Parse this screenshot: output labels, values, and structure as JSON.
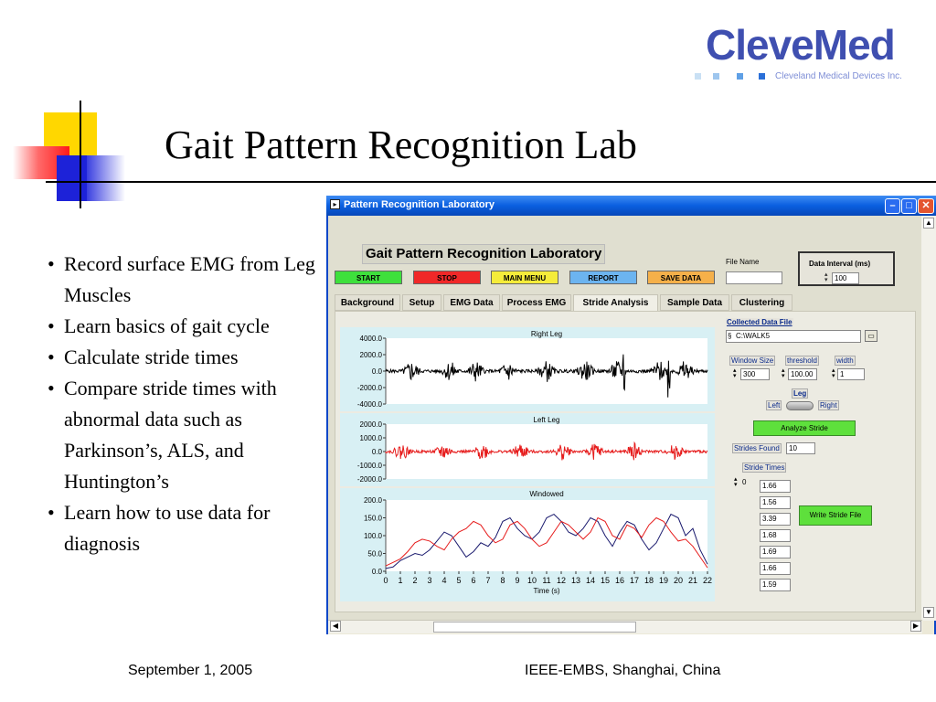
{
  "slide": {
    "title": "Gait Pattern Recognition Lab",
    "bullets": [
      "Record surface EMG from Leg Muscles",
      "Learn basics of gait cycle",
      "Calculate stride times",
      "Compare stride times with abnormal data such as Parkinson’s, ALS, and Huntington’s",
      "Learn how to use data for diagnosis"
    ],
    "footer_left": "September 1, 2005",
    "footer_right": "IEEE-EMBS, Shanghai, China"
  },
  "logo": {
    "name": "CleveMed",
    "tagline": "Cleveland Medical Devices Inc.",
    "color": "#3f4fb0"
  },
  "window": {
    "title": "Pattern Recognition Laboratory",
    "app_title": "Gait Pattern Recognition Laboratory",
    "buttons": [
      {
        "label": "START",
        "color": "#3ee03c"
      },
      {
        "label": "STOP",
        "color": "#f02828"
      },
      {
        "label": "MAIN MENU",
        "color": "#f5ec3a"
      },
      {
        "label": "REPORT",
        "color": "#6cb4f0"
      },
      {
        "label": "SAVE DATA",
        "color": "#f5b04a"
      }
    ],
    "file_name_label": "File Name",
    "file_name_value": "",
    "data_interval_label": "Data Interval (ms)",
    "data_interval_value": "100",
    "tabs": [
      "Background",
      "Setup",
      "EMG Data",
      "Process EMG",
      "Stride Analysis",
      "Sample Data",
      "Clustering"
    ],
    "active_tab": "Stride Analysis",
    "right_panel": {
      "collected_label": "Collected Data File",
      "collected_value": "C:\\WALK5",
      "window_size_label": "Window Size",
      "window_size_value": "300",
      "threshold_label": "threshold",
      "threshold_value": "100.00",
      "width_label": "width",
      "width_value": "1",
      "leg_label": "Leg",
      "leg_left": "Left",
      "leg_right": "Right",
      "analyze_label": "Analyze Stride",
      "strides_found_label": "Strides Found",
      "strides_found_value": "10",
      "stride_times_label": "Stride Times",
      "stride_index_value": "0",
      "stride_times": [
        "1.66",
        "1.56",
        "3.39",
        "1.68",
        "1.69",
        "1.66",
        "1.59"
      ],
      "write_label": "Write Stride File"
    }
  },
  "chart_data": [
    {
      "type": "line",
      "title": "Right Leg",
      "ylim": [
        -4000,
        4000
      ],
      "yticks": [
        "4000.0",
        "2000.0",
        "0.0",
        "-2000.0",
        "-4000.0"
      ],
      "series": [
        {
          "color": "#000000"
        }
      ]
    },
    {
      "type": "line",
      "title": "Left Leg",
      "ylim": [
        -2000,
        2000
      ],
      "yticks": [
        "2000.0",
        "1000.0",
        "0.0",
        "-1000.0",
        "-2000.0"
      ],
      "series": [
        {
          "color": "#e61c1c"
        }
      ]
    },
    {
      "type": "line",
      "title": "Windowed",
      "xlabel": "Time (s)",
      "xlim": [
        0,
        22
      ],
      "ylim": [
        0,
        200
      ],
      "xticks": [
        "0",
        "1",
        "2",
        "3",
        "4",
        "5",
        "6",
        "7",
        "8",
        "9",
        "10",
        "11",
        "12",
        "13",
        "14",
        "15",
        "16",
        "17",
        "18",
        "19",
        "20",
        "21",
        "22"
      ],
      "yticks": [
        "200.0",
        "150.0",
        "100.0",
        "50.0",
        "0.0"
      ],
      "series": [
        {
          "color": "#1a1a6e",
          "x": [
            0,
            0.5,
            1,
            1.5,
            2,
            2.5,
            3,
            3.5,
            4,
            4.5,
            5,
            5.5,
            6,
            6.5,
            7,
            7.5,
            8,
            8.5,
            9,
            9.5,
            10,
            10.5,
            11,
            11.5,
            12,
            12.5,
            13,
            13.5,
            14,
            14.5,
            15,
            15.5,
            16,
            16.5,
            17,
            17.5,
            18,
            18.5,
            19,
            19.5,
            20,
            20.5,
            21,
            21.5,
            22
          ],
          "values": [
            8,
            12,
            30,
            40,
            50,
            45,
            60,
            85,
            110,
            100,
            70,
            40,
            55,
            80,
            70,
            95,
            140,
            150,
            120,
            100,
            90,
            110,
            150,
            160,
            140,
            110,
            100,
            120,
            150,
            140,
            100,
            70,
            110,
            140,
            130,
            90,
            60,
            80,
            120,
            160,
            150,
            100,
            120,
            60,
            20
          ]
        },
        {
          "color": "#e61c1c",
          "x": [
            0,
            0.5,
            1,
            1.5,
            2,
            2.5,
            3,
            3.5,
            4,
            4.5,
            5,
            5.5,
            6,
            6.5,
            7,
            7.5,
            8,
            8.5,
            9,
            9.5,
            10,
            10.5,
            11,
            11.5,
            12,
            12.5,
            13,
            13.5,
            14,
            14.5,
            15,
            15.5,
            16,
            16.5,
            17,
            17.5,
            18,
            18.5,
            19,
            19.5,
            20,
            20.5,
            21,
            21.5,
            22
          ],
          "values": [
            15,
            25,
            35,
            55,
            80,
            90,
            85,
            70,
            60,
            90,
            110,
            120,
            140,
            130,
            100,
            80,
            90,
            130,
            140,
            120,
            90,
            70,
            80,
            110,
            140,
            130,
            110,
            90,
            110,
            150,
            140,
            100,
            90,
            130,
            120,
            95,
            130,
            150,
            140,
            110,
            85,
            90,
            70,
            40,
            10
          ]
        }
      ]
    }
  ]
}
